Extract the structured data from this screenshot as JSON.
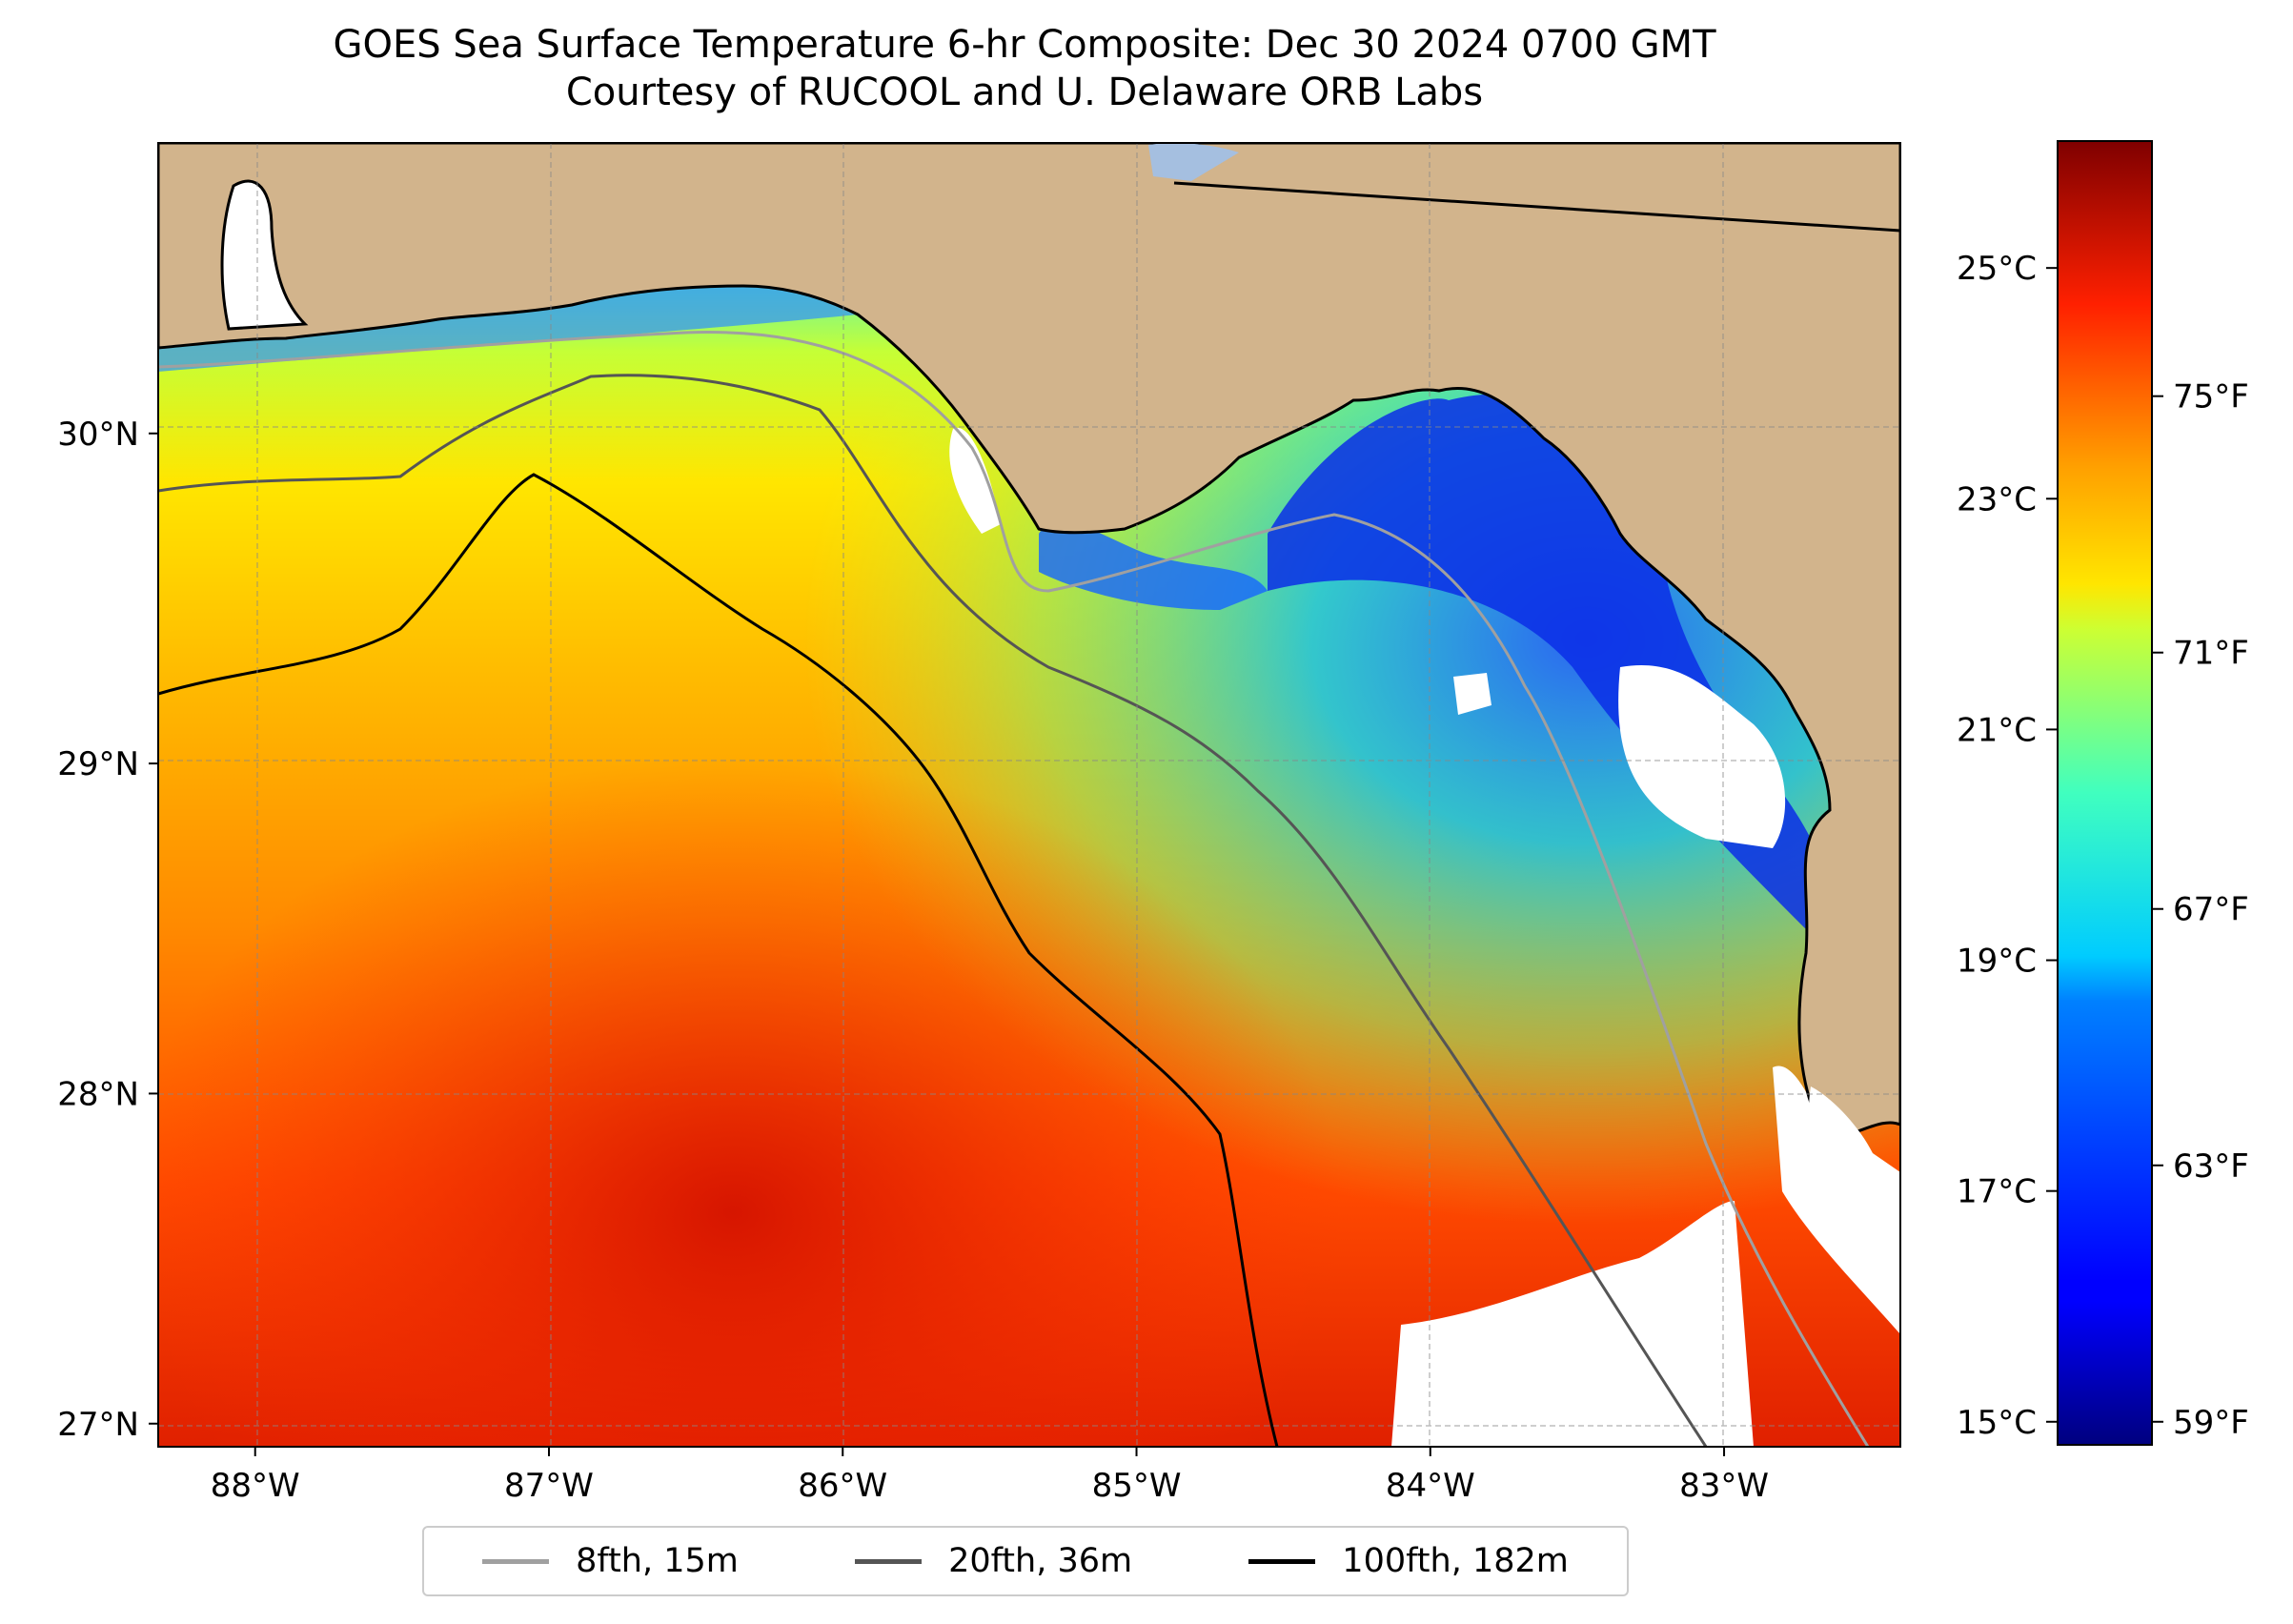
{
  "title": {
    "line1": "GOES Sea Surface Temperature 6-hr Composite: Dec 30 2024 0700 GMT",
    "line2": "Courtesy of RUCOOL and U. Delaware ORB Labs"
  },
  "map": {
    "lon_range": [
      -88.33,
      -82.4
    ],
    "lat_range": [
      26.93,
      30.88
    ],
    "land_color": "#d2b48c",
    "no_data_color": "#ffffff",
    "lon_ticks": [
      "88°W",
      "87°W",
      "86°W",
      "85°W",
      "84°W",
      "83°W"
    ],
    "lon_tick_values": [
      -88,
      -87,
      -86,
      -85,
      -84,
      -83
    ],
    "lat_ticks": [
      "30°N",
      "29°N",
      "28°N",
      "27°N"
    ],
    "lat_tick_values": [
      30,
      29,
      28,
      27
    ],
    "isobaths": [
      {
        "label": "8fth, 15m",
        "color": "#a0a0a0"
      },
      {
        "label": "20fth, 36m",
        "color": "#555555"
      },
      {
        "label": "100fth, 182m",
        "color": "#000000"
      }
    ]
  },
  "colorbar": {
    "colormap": "jet",
    "celsius_range": [
      14.8,
      26.1
    ],
    "celsius_ticks": [
      "25°C",
      "23°C",
      "21°C",
      "19°C",
      "17°C",
      "15°C"
    ],
    "celsius_tick_values": [
      25,
      23,
      21,
      19,
      17,
      15
    ],
    "fahrenheit_ticks": [
      "75°F",
      "71°F",
      "67°F",
      "63°F",
      "59°F"
    ],
    "fahrenheit_tick_values": [
      75,
      71,
      67,
      63,
      59
    ]
  }
}
